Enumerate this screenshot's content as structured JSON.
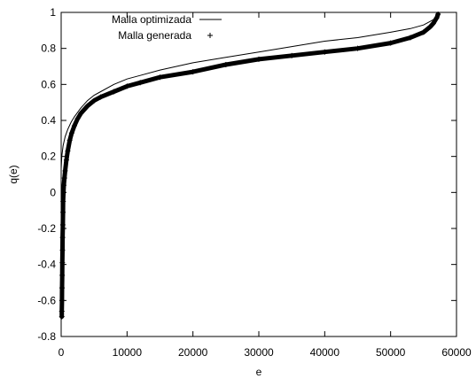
{
  "chart_data": {
    "type": "line",
    "title": "",
    "xlabel": "e",
    "ylabel": "q(e)",
    "xlim": [
      0,
      60000
    ],
    "ylim": [
      -0.8,
      1
    ],
    "xticks": [
      "0",
      "10000",
      "20000",
      "30000",
      "40000",
      "50000",
      "60000"
    ],
    "yticks": [
      "-0.8",
      "-0.6",
      "-0.4",
      "-0.2",
      "0",
      "0.2",
      "0.4",
      "0.6",
      "0.8",
      "1"
    ],
    "grid": false,
    "legend_position": "top-left",
    "series": [
      {
        "name": "Malla optimizada",
        "style": "line",
        "color": "#000000",
        "x": [
          0,
          100,
          300,
          600,
          1000,
          1500,
          2000,
          3000,
          4000,
          5000,
          6000,
          8000,
          10000,
          12000,
          15000,
          20000,
          25000,
          30000,
          35000,
          40000,
          45000,
          50000,
          53000,
          55000,
          56000,
          56500,
          57000,
          57200
        ],
        "y": [
          0.13,
          0.2,
          0.26,
          0.31,
          0.35,
          0.39,
          0.42,
          0.47,
          0.51,
          0.54,
          0.56,
          0.6,
          0.63,
          0.65,
          0.68,
          0.72,
          0.75,
          0.78,
          0.81,
          0.84,
          0.86,
          0.89,
          0.91,
          0.93,
          0.95,
          0.96,
          0.98,
          1.0
        ]
      },
      {
        "name": "Malla generada",
        "style": "points",
        "marker": "+",
        "color": "#000000",
        "x": [
          100,
          100,
          120,
          140,
          160,
          180,
          200,
          220,
          250,
          280,
          300,
          350,
          400,
          500,
          600,
          800,
          1000,
          1300,
          1600,
          2000,
          2500,
          3000,
          3500,
          4000,
          5000,
          6000,
          8000,
          10000,
          12000,
          15000,
          20000,
          25000,
          30000,
          35000,
          40000,
          45000,
          50000,
          53000,
          55000,
          56000,
          56500,
          57000,
          57200
        ],
        "y": [
          -0.69,
          -0.66,
          -0.6,
          -0.53,
          -0.46,
          -0.39,
          -0.32,
          -0.25,
          -0.18,
          -0.11,
          -0.05,
          0.0,
          0.04,
          0.08,
          0.12,
          0.18,
          0.23,
          0.29,
          0.33,
          0.37,
          0.41,
          0.44,
          0.46,
          0.48,
          0.51,
          0.53,
          0.56,
          0.59,
          0.61,
          0.64,
          0.67,
          0.71,
          0.74,
          0.76,
          0.78,
          0.8,
          0.83,
          0.86,
          0.89,
          0.92,
          0.94,
          0.97,
          0.99
        ]
      }
    ]
  }
}
